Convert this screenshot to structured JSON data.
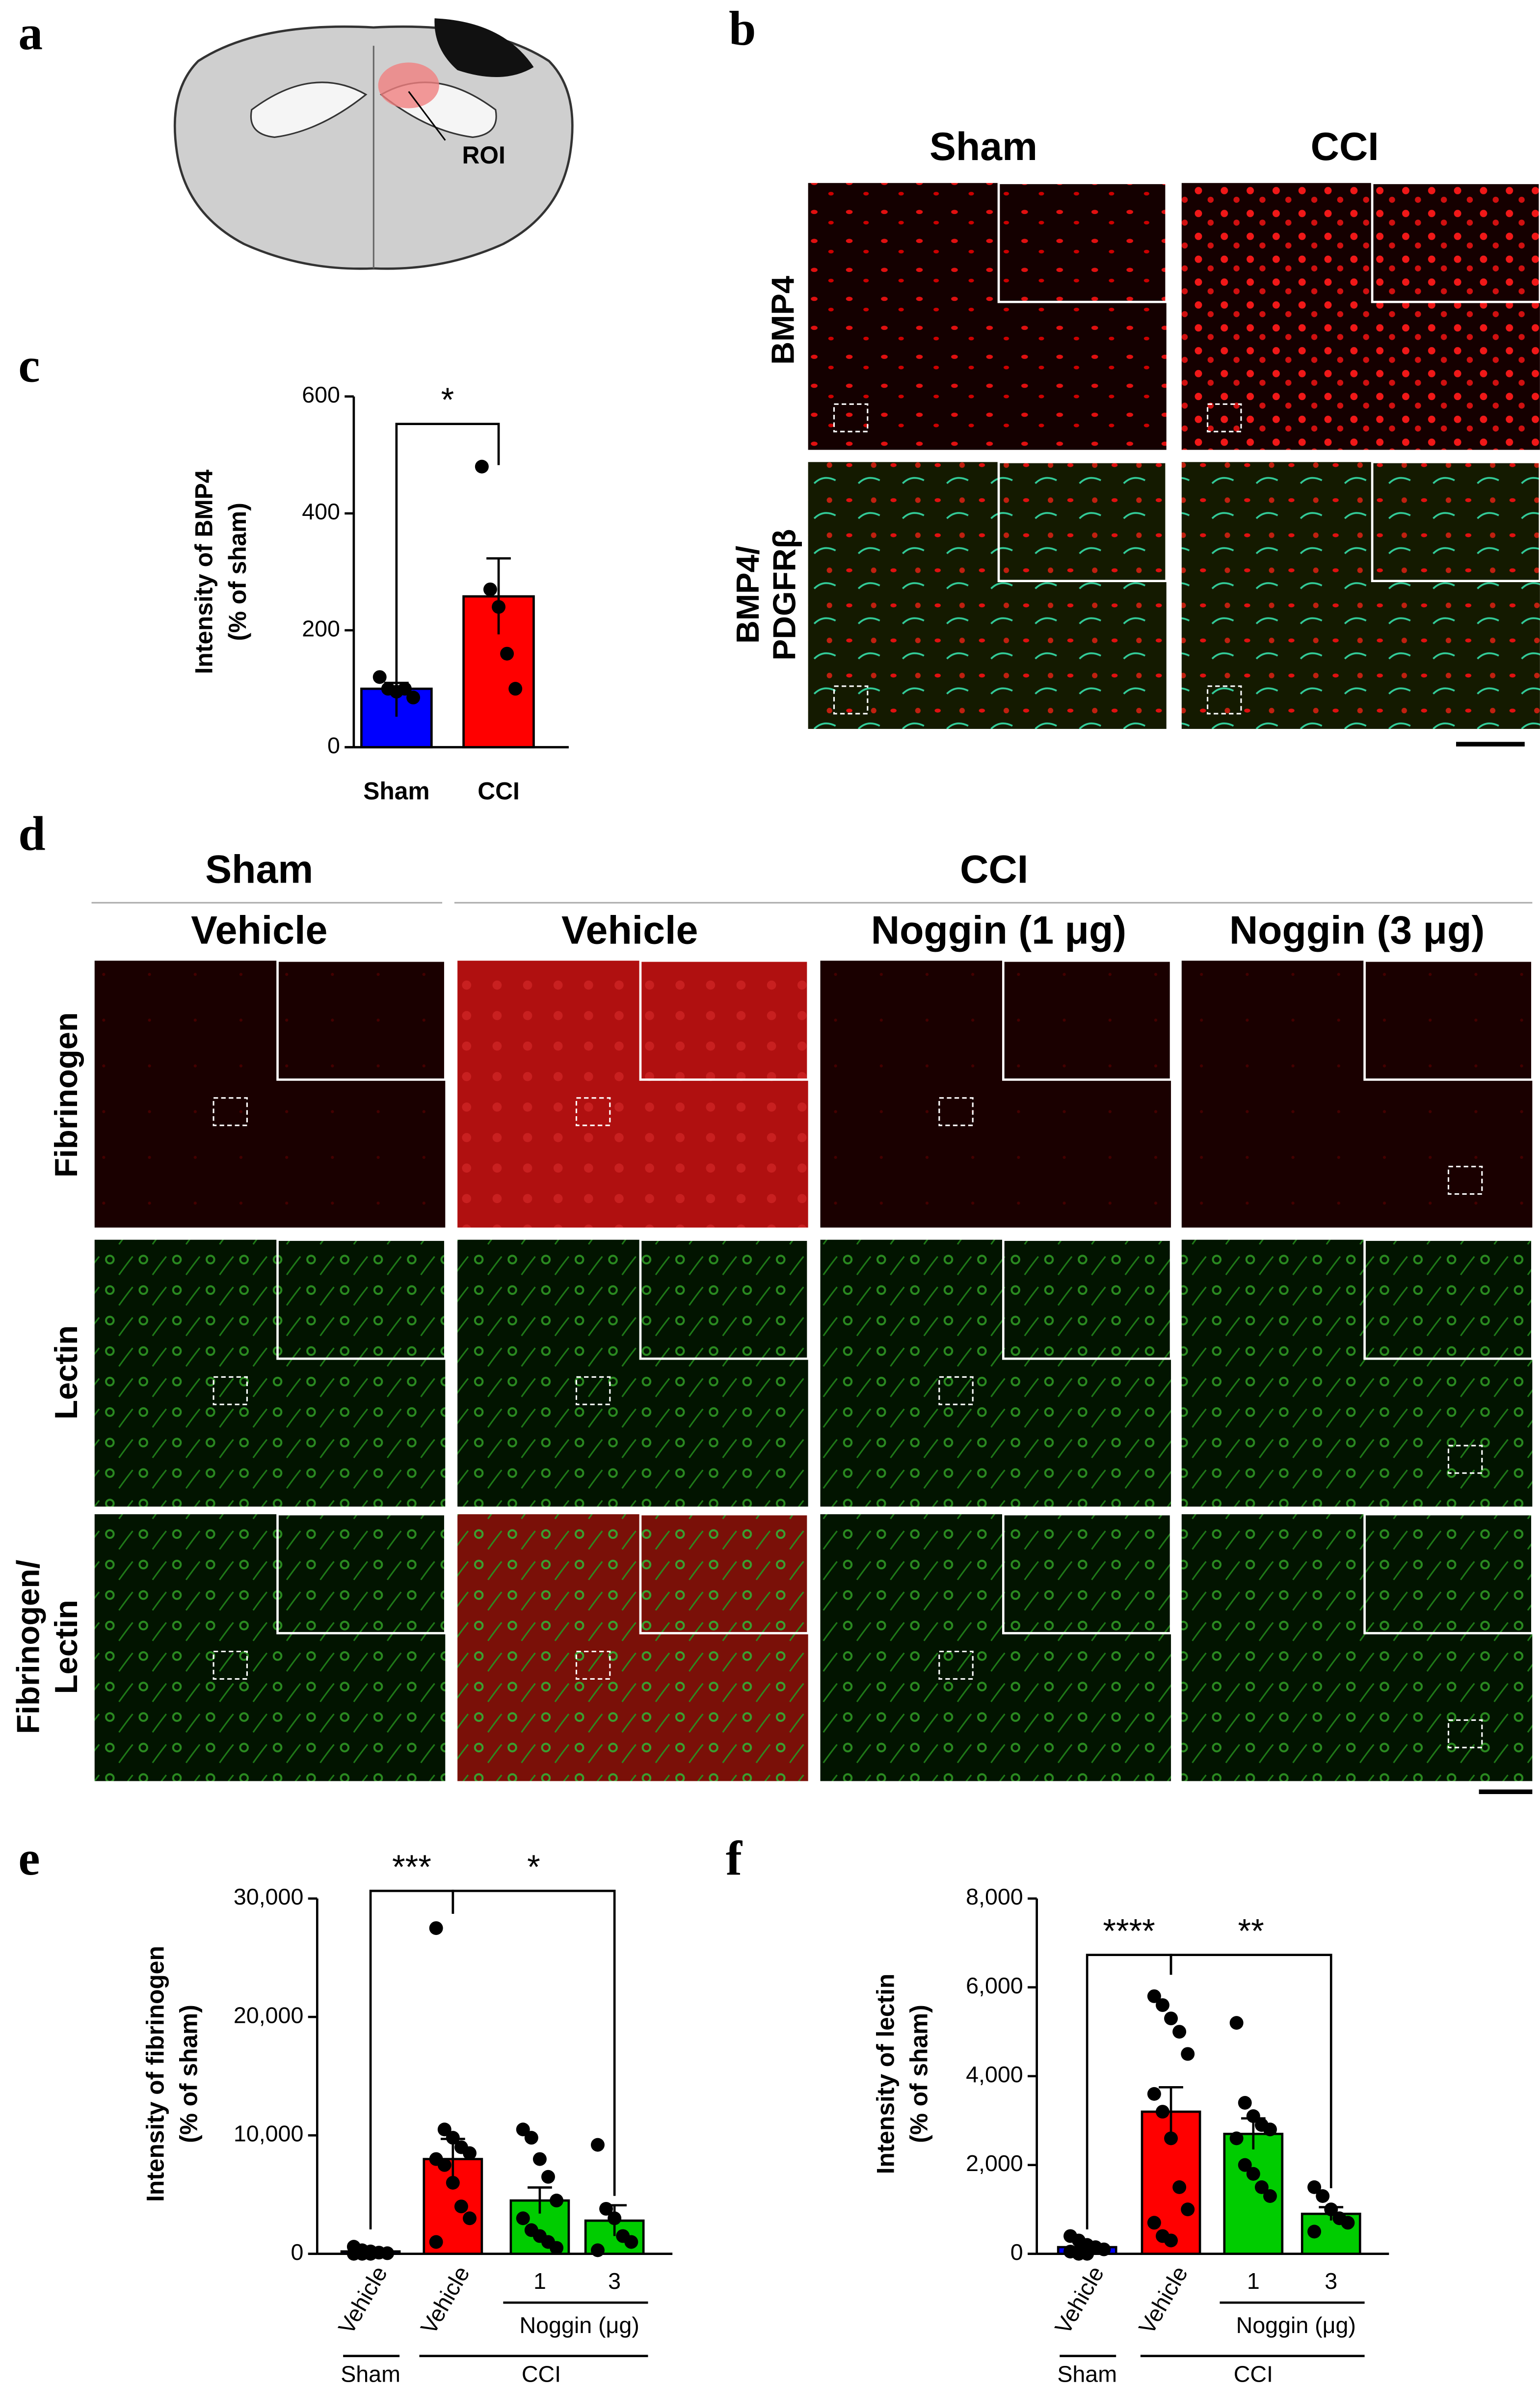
{
  "panels": {
    "a": {
      "letter": "a",
      "roi": "ROI"
    },
    "b": {
      "letter": "b",
      "columns": [
        "Sham",
        "CCI"
      ],
      "rows": [
        [
          "BMP4"
        ],
        [
          "BMP4/",
          "PDGFRβ"
        ]
      ]
    },
    "c": {
      "letter": "c"
    },
    "d": {
      "letter": "d",
      "groups": [
        "Sham",
        "CCI"
      ],
      "columns": [
        "Vehicle",
        "Vehicle",
        "Noggin (1 μg)",
        "Noggin (3 μg)"
      ],
      "rows": [
        [
          "Fibrinogen"
        ],
        [
          "Lectin"
        ],
        [
          "Fibrinogen/",
          "Lectin"
        ]
      ]
    },
    "e": {
      "letter": "e"
    },
    "f": {
      "letter": "f"
    }
  },
  "chart_data": [
    {
      "type": "bar",
      "ylabel": [
        "Intensity of BMP4",
        "(% of sham)"
      ],
      "categories": [
        "Sham",
        "CCI"
      ],
      "values": [
        100,
        258
      ],
      "errors": [
        10,
        65
      ],
      "colors": [
        "#0000ff",
        "#ff0000"
      ],
      "points": [
        [
          120,
          100,
          95,
          100,
          85
        ],
        [
          480,
          270,
          240,
          160,
          100
        ]
      ],
      "ylim": [
        0,
        600
      ],
      "yticks": [
        0,
        200,
        400,
        600
      ],
      "annotations": [
        "*"
      ]
    },
    {
      "type": "bar",
      "ylabel": [
        "Intensity of fibrinogen",
        "(% of sham)"
      ],
      "categories": [
        "Vehicle",
        "Vehicle",
        "1",
        "3"
      ],
      "groups": [
        "Sham",
        "CCI"
      ],
      "subgroup": "Noggin (μg)",
      "values": [
        200,
        8000,
        4500,
        2800
      ],
      "errors": [
        100,
        1700,
        1100,
        1300
      ],
      "colors": [
        "#0000ff",
        "#ff0000",
        "#00cc00",
        "#00cc00"
      ],
      "points": [
        [
          600,
          300,
          200,
          100,
          50,
          0,
          0,
          0
        ],
        [
          27500,
          10500,
          9800,
          9000,
          8500,
          8000,
          7500,
          6000,
          4000,
          3000,
          1000
        ],
        [
          10500,
          9800,
          8000,
          6500,
          4500,
          3000,
          2000,
          1500,
          1000,
          500
        ],
        [
          9200,
          3800,
          3000,
          1500,
          1000,
          300
        ]
      ],
      "ylim": [
        0,
        30000
      ],
      "yticks": [
        0,
        {
          "value": 10000,
          "label": "10,000"
        },
        {
          "value": 20000,
          "label": "20,000"
        },
        {
          "value": 30000,
          "label": "30,000"
        }
      ],
      "annotations": [
        "***",
        "*"
      ]
    },
    {
      "type": "bar",
      "ylabel": [
        "Intensity of lectin",
        "(% of sham)"
      ],
      "categories": [
        "Vehicle",
        "Vehicle",
        "1",
        "3"
      ],
      "groups": [
        "Sham",
        "CCI"
      ],
      "subgroup": "Noggin (μg)",
      "values": [
        150,
        3200,
        2700,
        900
      ],
      "errors": [
        50,
        550,
        350,
        150
      ],
      "colors": [
        "#0000ff",
        "#ff0000",
        "#00cc00",
        "#00cc00"
      ],
      "points": [
        [
          400,
          300,
          200,
          150,
          100,
          50,
          0,
          0
        ],
        [
          5800,
          5600,
          5300,
          5000,
          4500,
          3600,
          3200,
          2600,
          1500,
          1000,
          700,
          400,
          300
        ],
        [
          5200,
          3400,
          3100,
          2900,
          2800,
          2600,
          2000,
          1800,
          1500,
          1300
        ],
        [
          1500,
          1300,
          1000,
          800,
          700,
          500
        ]
      ],
      "ylim": [
        0,
        8000
      ],
      "yticks": [
        0,
        {
          "value": 2000,
          "label": "2,000"
        },
        {
          "value": 4000,
          "label": "4,000"
        },
        {
          "value": 6000,
          "label": "6,000"
        },
        {
          "value": 8000,
          "label": "8,000"
        }
      ],
      "annotations": [
        "****",
        "**"
      ]
    }
  ]
}
